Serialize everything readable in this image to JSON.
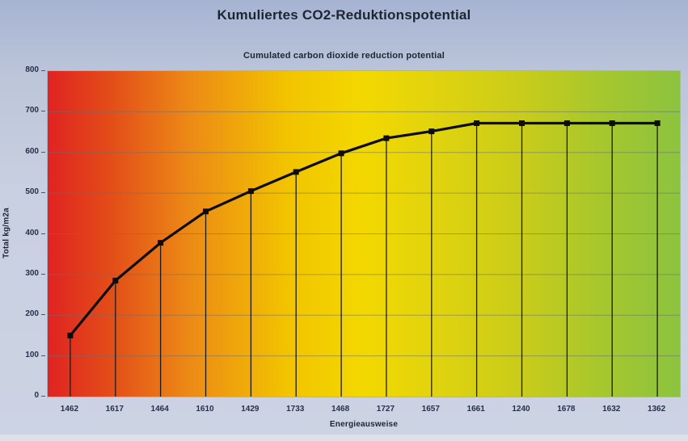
{
  "title": "Kumuliertes CO2-Reduktionspotential",
  "subtitle": "Cumulated carbon dioxide reduction potential",
  "chart_data": {
    "type": "line",
    "categories": [
      "1462",
      "1617",
      "1464",
      "1610",
      "1429",
      "1733",
      "1468",
      "1727",
      "1657",
      "1661",
      "1240",
      "1678",
      "1632",
      "1362"
    ],
    "values": [
      150,
      285,
      378,
      455,
      505,
      552,
      598,
      635,
      652,
      672,
      672,
      672,
      672,
      672
    ],
    "title": "Kumuliertes CO2-Reduktionspotential",
    "subtitle": "Cumulated carbon dioxide reduction potential",
    "xlabel": "Energieausweise",
    "ylabel": "Total kg/m2a",
    "ylim": [
      0,
      800
    ],
    "ytick_step": 100,
    "grid": "horizontal",
    "legend": "none",
    "line_color": "#0d0d0d",
    "marker": "square",
    "drop_lines": true,
    "background_gradient": [
      "#e02322",
      "#ec8816",
      "#f3d800",
      "#c9cc1a",
      "#8cc33f"
    ],
    "page_background": "#c9d0e1",
    "text_color": "#1d2533"
  }
}
